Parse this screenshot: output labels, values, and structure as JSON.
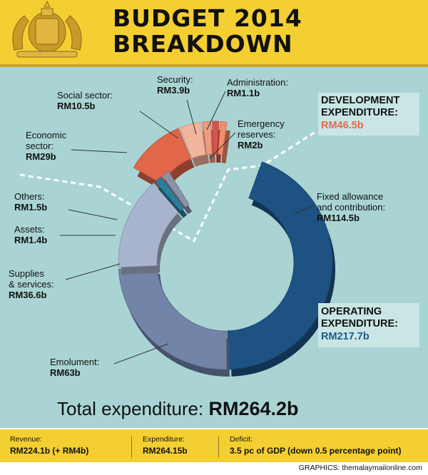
{
  "header": {
    "title_line1": "BUDGET 2014",
    "title_line2": "BREAKDOWN"
  },
  "development_box": {
    "title_line1": "DEVELOPMENT",
    "title_line2": "EXPENDITURE:",
    "value": "RM46.5b",
    "value_color": "#e8684b"
  },
  "operating_box": {
    "title_line1": "OPERATING",
    "title_line2": "EXPENDITURE:",
    "value": "RM217.7b",
    "value_color": "#1e5c8c"
  },
  "chart_data": {
    "type": "pie",
    "groups": [
      {
        "name": "Development expenditure",
        "total": 46.5,
        "segments": [
          {
            "label": "Economic sector:",
            "value_text": "RM29b",
            "value": 29,
            "color": "#e2664a"
          },
          {
            "label": "Social sector:",
            "value_text": "RM10.5b",
            "value": 10.5,
            "color": "#f2b59c"
          },
          {
            "label": "Security:",
            "value_text": "RM3.9b",
            "value": 3.9,
            "color": "#f19a7e"
          },
          {
            "label": "Administration:",
            "value_text": "RM1.1b",
            "value": 1.1,
            "color": "#d9534a"
          },
          {
            "label": "Emergency reserves:",
            "value_text": "RM2b",
            "value": 2,
            "color": "#f28d6a"
          }
        ]
      },
      {
        "name": "Operating expenditure",
        "total": 217.7,
        "segments": [
          {
            "label": "Fixed allowance and contribution:",
            "value_text": "RM114.5b",
            "value": 114.5,
            "color": "#1d5283"
          },
          {
            "label": "Emolument:",
            "value_text": "RM63b",
            "value": 63,
            "color": "#7284a8"
          },
          {
            "label": "Supplies & services:",
            "value_text": "RM36.6b",
            "value": 36.6,
            "color": "#a9b4cf"
          },
          {
            "label": "Assets:",
            "value_text": "RM1.4b",
            "value": 1.4,
            "color": "#2d7e9a"
          },
          {
            "label": "Others:",
            "value_text": "RM1.5b",
            "value": 1.5,
            "color": "#8b93a9"
          }
        ]
      }
    ]
  },
  "labels": {
    "security": {
      "name": "Security:",
      "value": "RM3.9b"
    },
    "administration": {
      "name": "Administration:",
      "value": "RM1.1b"
    },
    "social": {
      "name": "Social sector:",
      "value": "RM10.5b"
    },
    "emergency_l1": "Emergency",
    "emergency_l2": "reserves:",
    "emergency_value": "RM2b",
    "economic_l1": "Economic",
    "economic_l2": "sector:",
    "economic_value": "RM29b",
    "fixed_l1": "Fixed allowance",
    "fixed_l2": "and contribution:",
    "fixed_value": "RM114.5b",
    "others": {
      "name": "Others:",
      "value": "RM1.5b"
    },
    "assets": {
      "name": "Assets:",
      "value": "RM1.4b"
    },
    "supplies_l1": "Supplies",
    "supplies_l2": "& services:",
    "supplies_value": "RM36.6b",
    "emolument": {
      "name": "Emolument:",
      "value": "RM63b"
    }
  },
  "total": {
    "label": "Total expenditure:",
    "value": "RM264.2b"
  },
  "footer": {
    "revenue_label": "Revenue:",
    "revenue_value": "RM224.1b (+ RM4b)",
    "expenditure_label": "Expenditure:",
    "expenditure_value": "RM264.15b",
    "deficit_label": "Deficit:",
    "deficit_value": "3.5 pc of GDP (down 0.5 percentage point)"
  },
  "credit": "GRAPHICS: themalaymailonline.com",
  "colors": {
    "header": "#f4cf31",
    "panel": "#a9d4d3"
  }
}
